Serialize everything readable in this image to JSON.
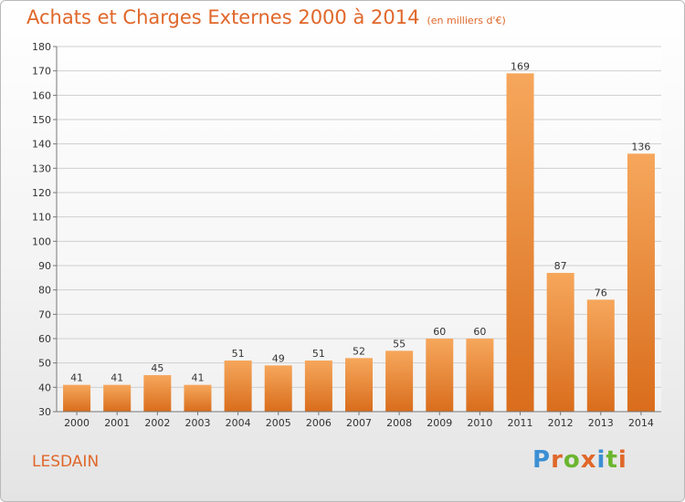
{
  "header": {
    "title": "Achats et Charges Externes 2000 à 2014",
    "unit": "(en milliers d'€)"
  },
  "footer": {
    "place": "LESDAIN",
    "logo": {
      "letters": [
        "P",
        "r",
        "o",
        "x",
        "i",
        "t",
        "i"
      ],
      "colors": [
        "#3b8fd4",
        "#e0672a",
        "#6bb52f",
        "#e0672a",
        "#3b8fd4",
        "#6bb52f",
        "#e0672a"
      ]
    }
  },
  "chart_data": {
    "type": "bar",
    "title": "Achats et Charges Externes 2000 à 2014",
    "subtitle": "(en milliers d'€)",
    "categories": [
      "2000",
      "2001",
      "2002",
      "2003",
      "2004",
      "2005",
      "2006",
      "2007",
      "2008",
      "2009",
      "2010",
      "2011",
      "2012",
      "2013",
      "2014"
    ],
    "values": [
      41,
      41,
      45,
      41,
      51,
      49,
      51,
      52,
      55,
      60,
      60,
      169,
      87,
      76,
      136
    ],
    "ylim": [
      30,
      180
    ],
    "yticks": [
      30,
      40,
      50,
      60,
      70,
      80,
      90,
      100,
      110,
      120,
      130,
      140,
      150,
      160,
      170,
      180
    ],
    "grid": true,
    "bar_color": "#e87d2c",
    "data_labels": true
  }
}
